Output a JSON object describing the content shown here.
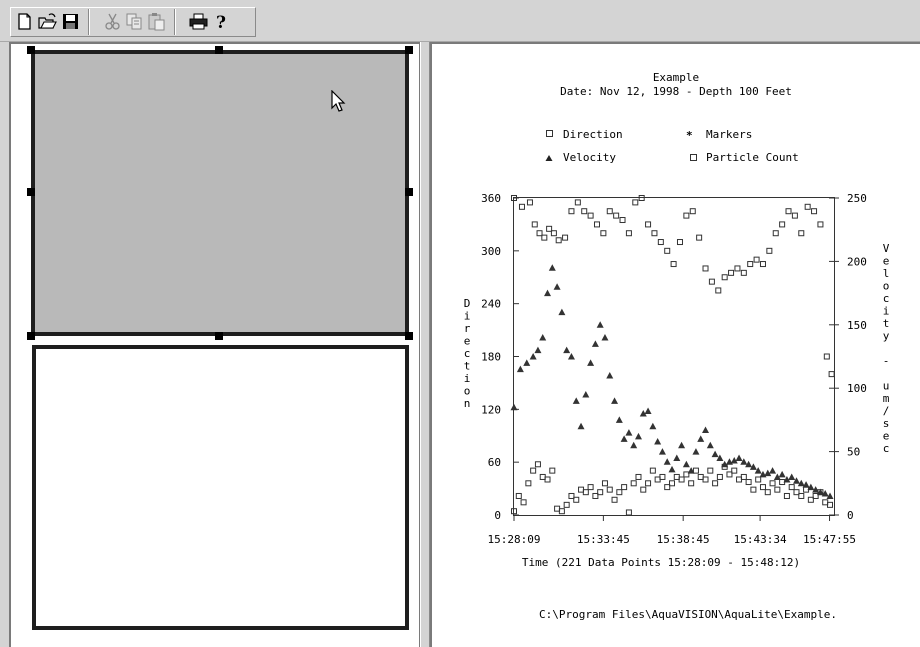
{
  "toolbar": {
    "buttons": [
      {
        "name": "new-document-icon"
      },
      {
        "name": "open-folder-icon"
      },
      {
        "name": "save-disk-icon"
      },
      {
        "name": "cut-icon"
      },
      {
        "name": "copy-icon"
      },
      {
        "name": "paste-icon"
      },
      {
        "name": "print-icon"
      },
      {
        "name": "help-icon"
      }
    ]
  },
  "colors": {
    "selected_panel_fill": "#b9b9b9",
    "panel_border": "#1e1e1e",
    "marker_color": "#333333"
  },
  "chart_data": {
    "type": "scatter",
    "title": "Example",
    "subtitle": "Date: Nov 12, 1998 - Depth 100 Feet",
    "legend": [
      "Direction",
      "Markers",
      "Velocity",
      "Particle Count"
    ],
    "legend_placement": "top",
    "xlabel": "Time (221 Data Points 15:28:09 - 15:48:12)",
    "ylabel_left": "Direction",
    "ylabel_right": "Velocity - um/sec",
    "x_tick_labels": [
      "15:28:09",
      "15:33:45",
      "15:38:45",
      "15:43:34",
      "15:47:55"
    ],
    "x_tick_minutes": [
      0,
      5.6,
      10.6,
      15.42,
      19.77
    ],
    "x_range_minutes": [
      0,
      20.05
    ],
    "y_left_ticks": [
      0,
      60,
      120,
      180,
      240,
      300,
      360
    ],
    "y_left_range": [
      0,
      360
    ],
    "y_right_ticks": [
      0,
      50,
      100,
      150,
      200,
      250
    ],
    "y_right_range": [
      0,
      250
    ],
    "grid": false,
    "footer_path": "C:\\Program Files\\AquaVISION\\AquaLite\\Example.",
    "series": [
      {
        "name": "Direction",
        "marker": "square",
        "axis": "left",
        "x": [
          0,
          0.5,
          1.0,
          1.3,
          1.6,
          1.9,
          2.2,
          2.5,
          2.8,
          3.2,
          3.6,
          4.0,
          4.4,
          4.8,
          5.2,
          5.6,
          6.0,
          6.4,
          6.8,
          7.2,
          7.6,
          8.0,
          8.4,
          8.8,
          9.2,
          9.6,
          10.0,
          10.4,
          10.8,
          11.2,
          11.6,
          12.0,
          12.4,
          12.8,
          13.2,
          13.6,
          14.0,
          14.4,
          14.8,
          15.2,
          15.6,
          16.0,
          16.4,
          16.8,
          17.2,
          17.6,
          18.0,
          18.4,
          18.8,
          19.2,
          19.6,
          19.9
        ],
        "y": [
          360,
          350,
          355,
          330,
          320,
          315,
          325,
          320,
          312,
          315,
          345,
          355,
          345,
          340,
          330,
          320,
          345,
          340,
          335,
          320,
          355,
          360,
          330,
          320,
          310,
          300,
          285,
          310,
          340,
          345,
          315,
          280,
          265,
          255,
          270,
          275,
          280,
          275,
          285,
          290,
          285,
          300,
          320,
          330,
          345,
          340,
          320,
          350,
          345,
          330,
          180,
          160
        ]
      },
      {
        "name": "Velocity",
        "marker": "triangle",
        "axis": "right",
        "x": [
          0,
          0.4,
          0.8,
          1.2,
          1.5,
          1.8,
          2.1,
          2.4,
          2.7,
          3.0,
          3.3,
          3.6,
          3.9,
          4.2,
          4.5,
          4.8,
          5.1,
          5.4,
          5.7,
          6.0,
          6.3,
          6.6,
          6.9,
          7.2,
          7.5,
          7.8,
          8.1,
          8.4,
          8.7,
          9.0,
          9.3,
          9.6,
          9.9,
          10.2,
          10.5,
          10.8,
          11.1,
          11.4,
          11.7,
          12.0,
          12.3,
          12.6,
          12.9,
          13.2,
          13.5,
          13.8,
          14.1,
          14.4,
          14.7,
          15.0,
          15.3,
          15.6,
          15.9,
          16.2,
          16.5,
          16.8,
          17.1,
          17.4,
          17.7,
          18.0,
          18.3,
          18.6,
          18.9,
          19.2,
          19.5,
          19.8
        ],
        "y": [
          85,
          115,
          120,
          125,
          130,
          140,
          175,
          195,
          180,
          160,
          130,
          125,
          90,
          70,
          95,
          120,
          135,
          150,
          140,
          110,
          90,
          75,
          60,
          65,
          55,
          62,
          80,
          82,
          70,
          58,
          50,
          42,
          36,
          45,
          55,
          40,
          35,
          50,
          60,
          67,
          55,
          48,
          45,
          40,
          42,
          43,
          45,
          42,
          40,
          38,
          35,
          32,
          33,
          35,
          30,
          32,
          28,
          30,
          27,
          25,
          24,
          22,
          20,
          18,
          17,
          15
        ]
      },
      {
        "name": "Particle Count",
        "marker": "square",
        "axis": "right",
        "x": [
          0,
          0.3,
          0.6,
          0.9,
          1.2,
          1.5,
          1.8,
          2.1,
          2.4,
          2.7,
          3.0,
          3.3,
          3.6,
          3.9,
          4.2,
          4.5,
          4.8,
          5.1,
          5.4,
          5.7,
          6.0,
          6.3,
          6.6,
          6.9,
          7.2,
          7.5,
          7.8,
          8.1,
          8.4,
          8.7,
          9.0,
          9.3,
          9.6,
          9.9,
          10.2,
          10.5,
          10.8,
          11.1,
          11.4,
          11.7,
          12.0,
          12.3,
          12.6,
          12.9,
          13.2,
          13.5,
          13.8,
          14.1,
          14.4,
          14.7,
          15.0,
          15.3,
          15.6,
          15.9,
          16.2,
          16.5,
          16.8,
          17.1,
          17.4,
          17.7,
          18.0,
          18.3,
          18.6,
          18.9,
          19.2,
          19.5,
          19.8
        ],
        "y": [
          3,
          15,
          10,
          25,
          35,
          40,
          30,
          28,
          35,
          5,
          3,
          8,
          15,
          12,
          20,
          18,
          22,
          15,
          18,
          25,
          20,
          12,
          18,
          22,
          2,
          25,
          30,
          20,
          25,
          35,
          28,
          30,
          22,
          25,
          30,
          28,
          32,
          25,
          35,
          30,
          28,
          35,
          25,
          30,
          38,
          32,
          35,
          28,
          30,
          26,
          20,
          28,
          22,
          18,
          25,
          20,
          26,
          15,
          22,
          18,
          15,
          20,
          12,
          15,
          18,
          10,
          8
        ]
      }
    ]
  }
}
